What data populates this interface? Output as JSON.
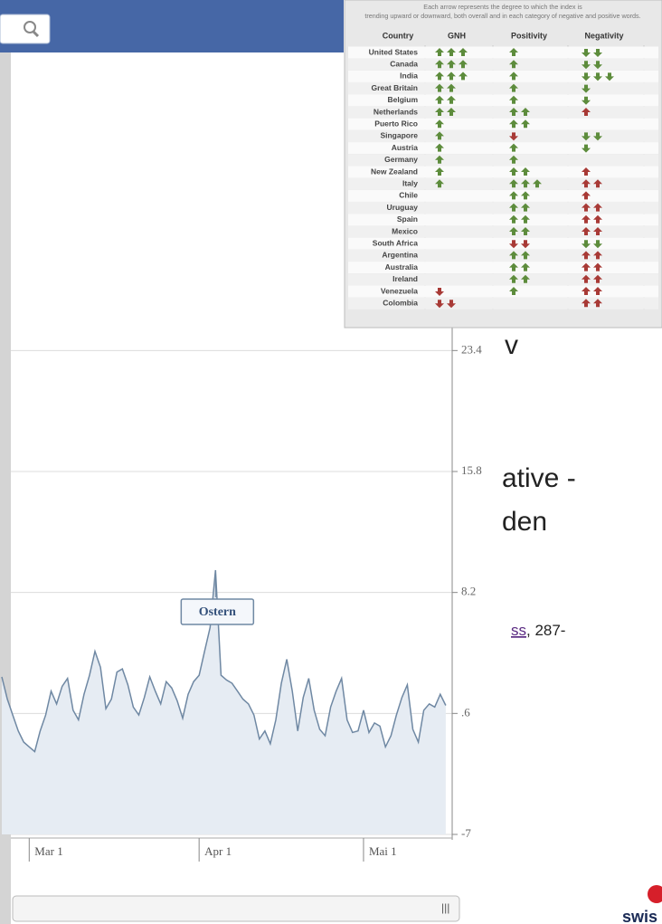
{
  "chart_data": {
    "type": "line",
    "categories": [
      null,
      null,
      null,
      null,
      null,
      "Mar 1",
      null,
      null,
      null,
      null,
      null,
      null,
      null,
      null,
      null,
      null,
      null,
      null,
      null,
      null,
      null,
      null,
      null,
      null,
      null,
      null,
      null,
      null,
      null,
      null,
      null,
      null,
      null,
      null,
      null,
      null,
      "Apr 1",
      null,
      null,
      null,
      null,
      null,
      null,
      null,
      null,
      null,
      null,
      null,
      null,
      null,
      null,
      null,
      null,
      null,
      null,
      null,
      null,
      null,
      null,
      null,
      null,
      null,
      null,
      null,
      null,
      null,
      "Mai 1",
      null,
      null,
      null,
      null,
      null,
      null,
      null,
      null,
      null,
      null,
      null,
      null,
      null,
      null,
      null
    ],
    "values": [
      2.9,
      1.5,
      0.5,
      -0.5,
      -1.2,
      -1.5,
      -1.8,
      -0.5,
      0.5,
      2.0,
      1.2,
      2.3,
      2.8,
      0.8,
      0.2,
      1.8,
      3.0,
      4.5,
      3.5,
      0.9,
      1.5,
      3.2,
      3.4,
      2.4,
      1.0,
      0.5,
      1.6,
      2.9,
      2.0,
      1.2,
      2.6,
      2.2,
      1.4,
      0.3,
      1.8,
      2.6,
      3.0,
      4.5,
      6.0,
      9.6,
      3.0,
      2.7,
      2.5,
      2.0,
      1.5,
      1.2,
      0.5,
      -1.0,
      -0.5,
      -1.3,
      0.2,
      2.5,
      4.0,
      2.0,
      -0.5,
      1.6,
      2.8,
      0.8,
      -0.4,
      -0.8,
      1.0,
      2.0,
      2.8,
      0.2,
      -0.6,
      -0.5,
      0.8,
      -0.6,
      0.0,
      -0.2,
      -1.5,
      -0.8,
      0.5,
      1.6,
      2.4,
      -0.4,
      -1.2,
      0.8,
      1.2,
      1.0,
      1.8,
      1.1
    ],
    "color": "#6f88a3",
    "fill": "#e6ecf3",
    "ylim": [
      -7,
      38.6
    ],
    "yticks": [
      -7,
      {
        "value": 0.6,
        "label": ".6"
      },
      8.2,
      15.8,
      23.4
    ],
    "grid": true,
    "annotation": {
      "label": "Ostern",
      "index": 39
    }
  },
  "table": {
    "caption": "Each arrow represents the degree to which the index is trending upward or downward, both overall and in each category of negative and positive words.",
    "columns": [
      "Country",
      "GNH",
      "Positivity",
      "Negativity"
    ],
    "rows": [
      [
        "United States",
        3,
        1,
        -2
      ],
      [
        "Canada",
        3,
        1,
        -2
      ],
      [
        "India",
        3,
        1,
        -3
      ],
      [
        "Great Britain",
        2,
        1,
        -1
      ],
      [
        "Belgium",
        2,
        1,
        -1
      ],
      [
        "Netherlands",
        2,
        2,
        1
      ],
      [
        "Puerto Rico",
        1,
        2,
        0
      ],
      [
        "Singapore",
        1,
        -1,
        -2
      ],
      [
        "Austria",
        1,
        1,
        -1
      ],
      [
        "Germany",
        1,
        1,
        0
      ],
      [
        "New Zealand",
        1,
        2,
        1
      ],
      [
        "Italy",
        1,
        3,
        2
      ],
      [
        "Chile",
        0,
        2,
        1
      ],
      [
        "Uruguay",
        0,
        2,
        2
      ],
      [
        "Spain",
        0,
        2,
        2
      ],
      [
        "Mexico",
        0,
        2,
        2
      ],
      [
        "South Africa",
        0,
        -2,
        -2
      ],
      [
        "Argentina",
        0,
        2,
        2
      ],
      [
        "Australia",
        0,
        2,
        2
      ],
      [
        "Ireland",
        0,
        2,
        2
      ],
      [
        "Venezuela",
        -1,
        1,
        2
      ],
      [
        "Colombia",
        -2,
        0,
        2
      ]
    ]
  },
  "slide": {
    "fragments": [
      "v",
      "ative -",
      "den"
    ],
    "link": "ss",
    "citation": ", 287-",
    "logo": "swis"
  }
}
